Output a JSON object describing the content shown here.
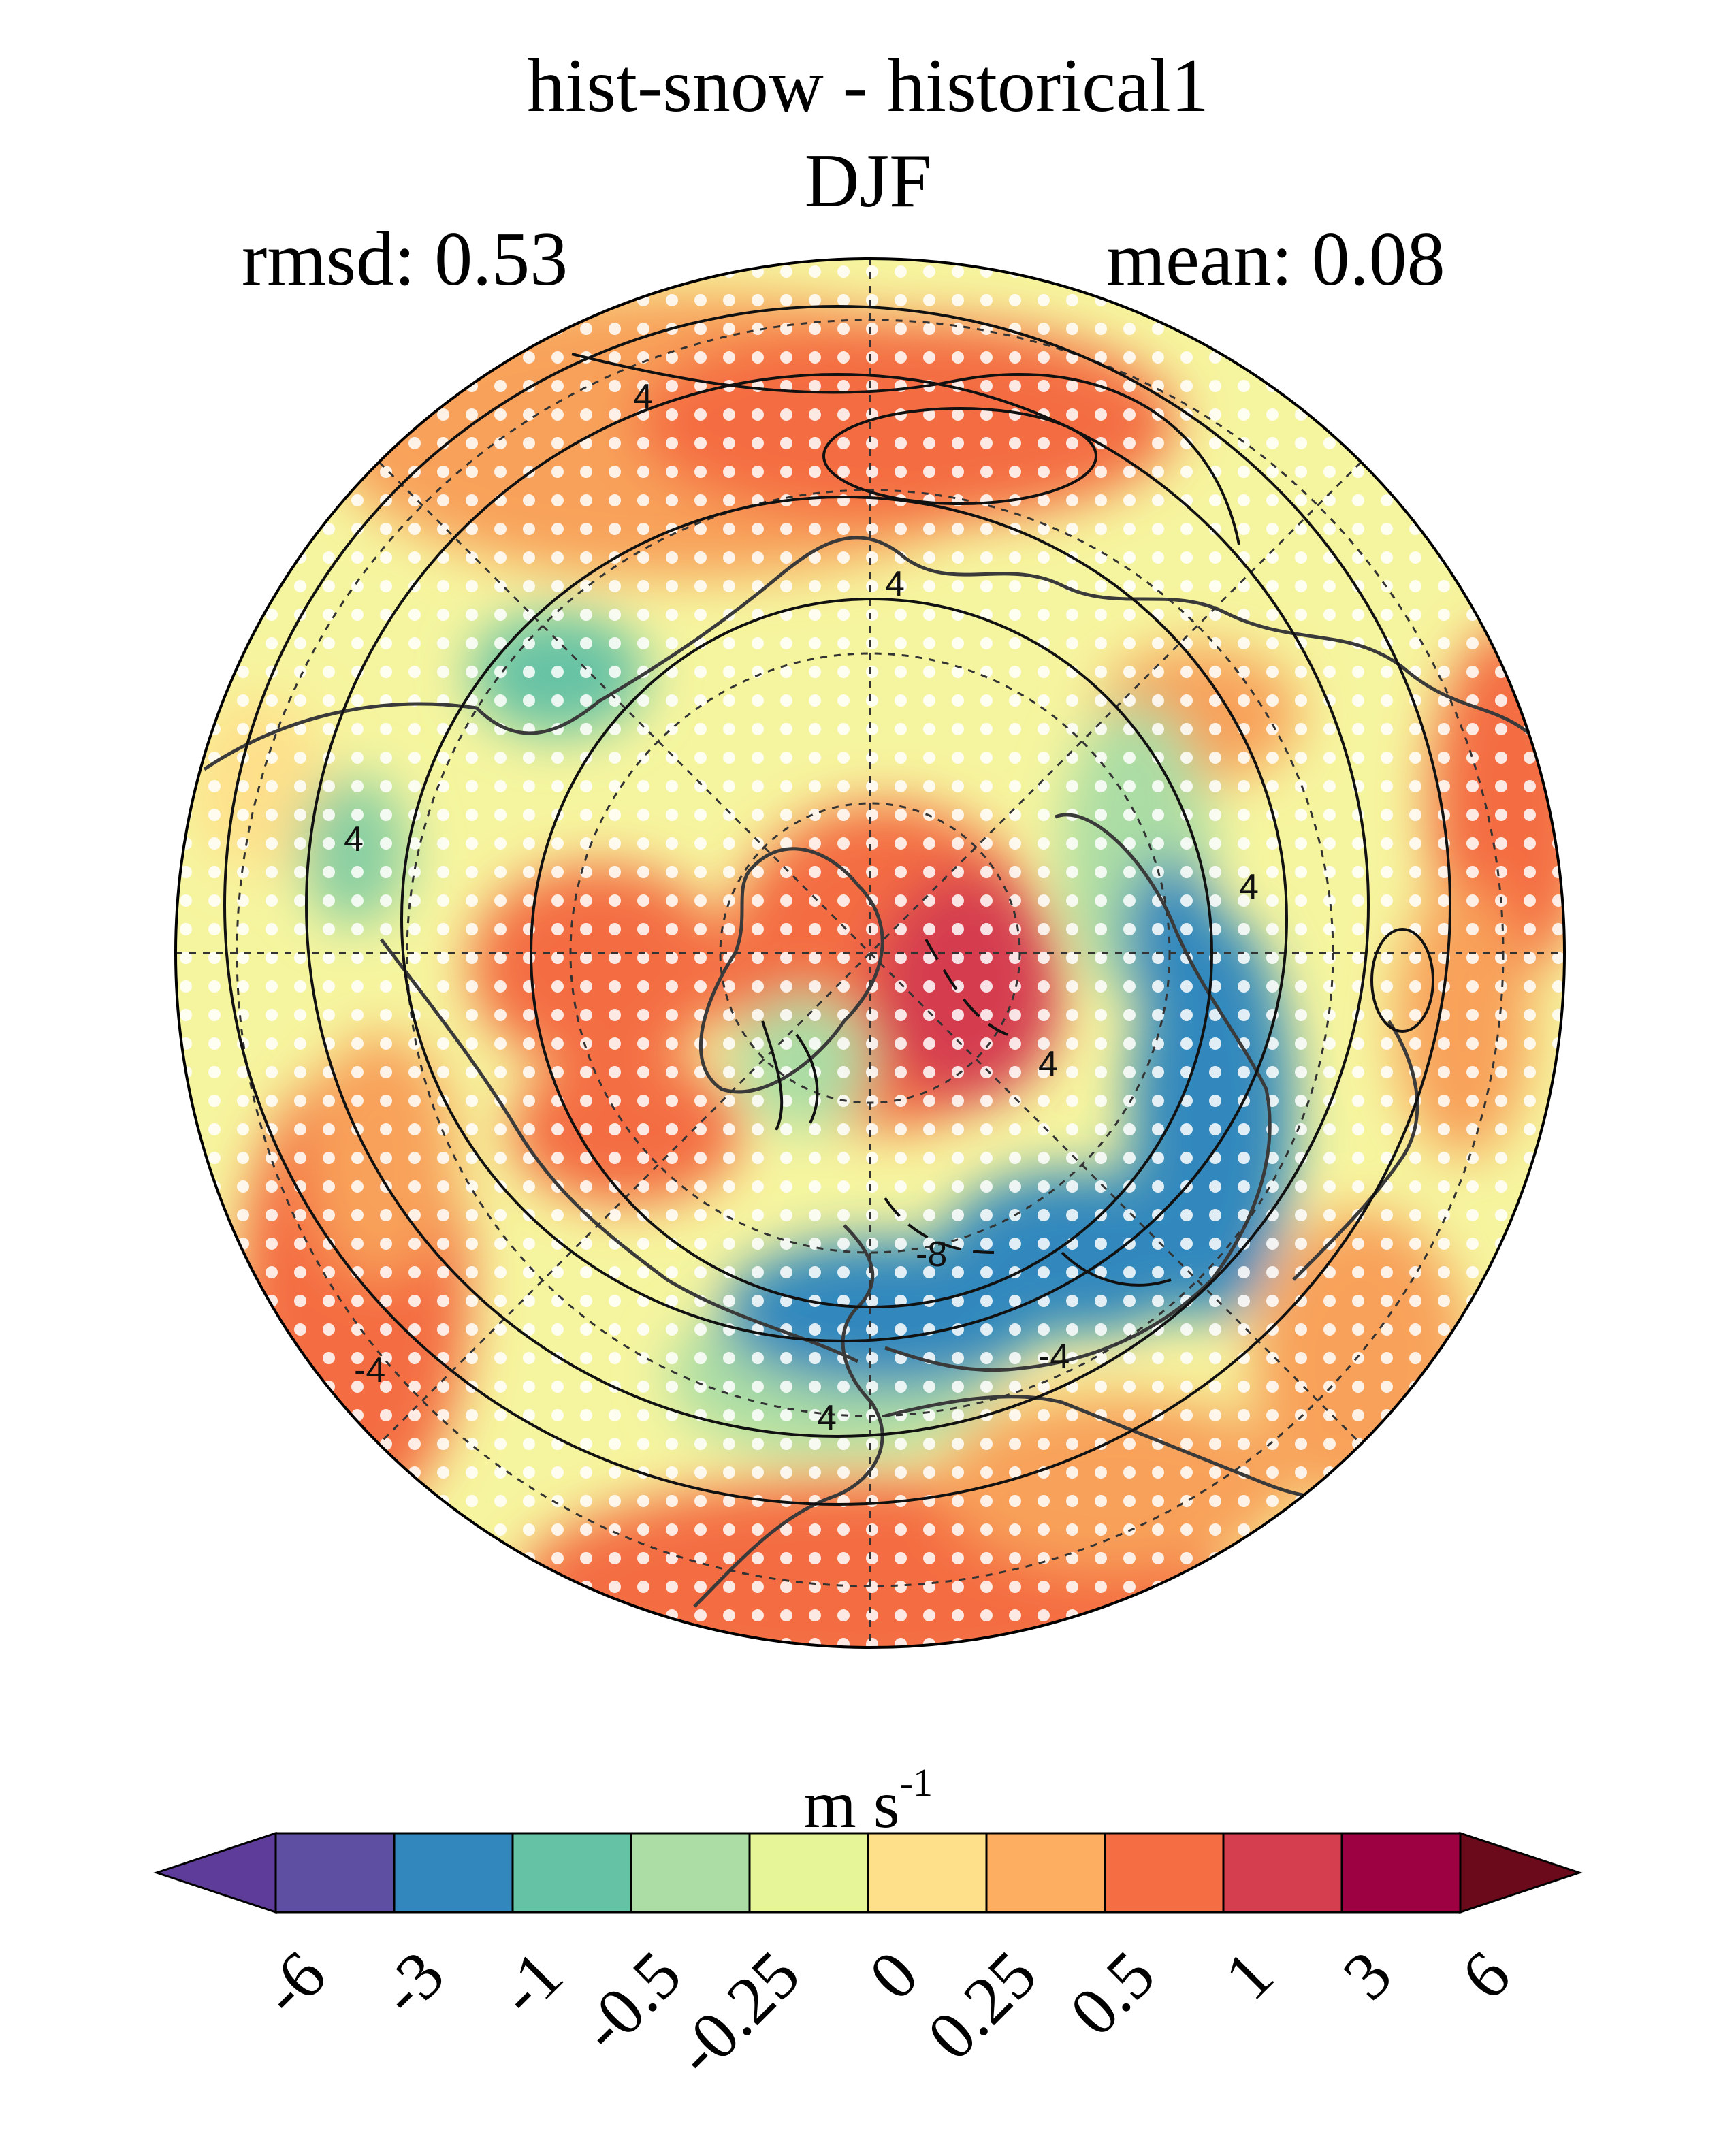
{
  "title_line1": "hist-snow - historical1",
  "title_line2": "DJF",
  "stat_left": "rmsd: 0.53",
  "stat_right": "mean: 0.08",
  "colorbar": {
    "unit_base": "m s",
    "unit_exp": "-1",
    "levels": [
      "-6",
      "-3",
      "-1",
      "-0.5",
      "-0.25",
      "0",
      "0.25",
      "0.5",
      "1",
      "3",
      "6"
    ],
    "colors": [
      "#5e4fa2",
      "#3288bd",
      "#66c2a5",
      "#abdda4",
      "#e6f598",
      "#fee08b",
      "#fdae61",
      "#f46d43",
      "#d53e4f",
      "#9e0142"
    ],
    "under_color": "#5e3c99",
    "over_color": "#6b0a1a"
  },
  "contour_labels": [
    "4",
    "4",
    "4",
    "4",
    "4",
    "-8",
    "-4",
    "4",
    "-4"
  ],
  "map": {
    "projection": "north polar stereographic",
    "stippling": "white dots"
  }
}
